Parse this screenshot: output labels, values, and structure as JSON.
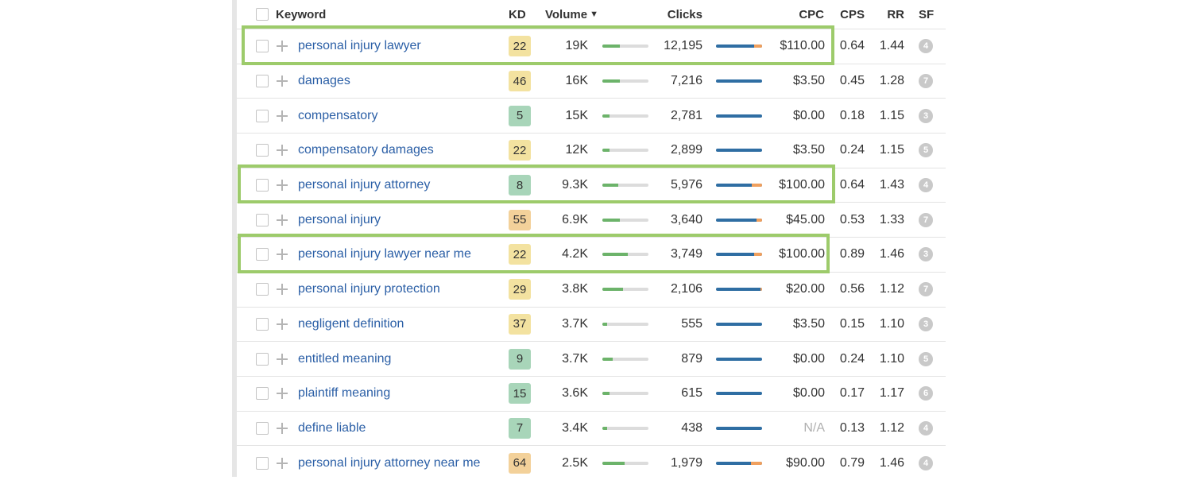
{
  "header": {
    "keyword": "Keyword",
    "kd": "KD",
    "volume": "Volume",
    "sort_indicator": "▼",
    "clicks": "Clicks",
    "cpc": "CPC",
    "cps": "CPS",
    "rr": "RR",
    "sf": "SF"
  },
  "colors": {
    "kd_easy": "#a8d5b9",
    "kd_medium": "#f3e2a0",
    "kd_hard": "#f3d19a",
    "highlight": "#9dcb6b",
    "link": "#2b5fa6"
  },
  "rows": [
    {
      "keyword": "personal injury lawyer",
      "kd": "22",
      "kd_level": "medium",
      "volume": "19K",
      "volume_level": 0.38,
      "clicks": "12,195",
      "paid_share": 0.18,
      "cpc": "$110.00",
      "cps": "0.64",
      "rr": "1.44",
      "sf": "4",
      "highlighted": true
    },
    {
      "keyword": "damages",
      "kd": "46",
      "kd_level": "medium",
      "volume": "16K",
      "volume_level": 0.38,
      "clicks": "7,216",
      "paid_share": 0,
      "cpc": "$3.50",
      "cps": "0.45",
      "rr": "1.28",
      "sf": "7",
      "highlighted": false
    },
    {
      "keyword": "compensatory",
      "kd": "5",
      "kd_level": "easy",
      "volume": "15K",
      "volume_level": 0.15,
      "clicks": "2,781",
      "paid_share": 0,
      "cpc": "$0.00",
      "cps": "0.18",
      "rr": "1.15",
      "sf": "3",
      "highlighted": false
    },
    {
      "keyword": "compensatory damages",
      "kd": "22",
      "kd_level": "medium",
      "volume": "12K",
      "volume_level": 0.15,
      "clicks": "2,899",
      "paid_share": 0,
      "cpc": "$3.50",
      "cps": "0.24",
      "rr": "1.15",
      "sf": "5",
      "highlighted": false
    },
    {
      "keyword": "personal injury attorney",
      "kd": "8",
      "kd_level": "easy",
      "volume": "9.3K",
      "volume_level": 0.35,
      "clicks": "5,976",
      "paid_share": 0.22,
      "cpc": "$100.00",
      "cps": "0.64",
      "rr": "1.43",
      "sf": "4",
      "highlighted": true
    },
    {
      "keyword": "personal injury",
      "kd": "55",
      "kd_level": "hard",
      "volume": "6.9K",
      "volume_level": 0.38,
      "clicks": "3,640",
      "paid_share": 0.12,
      "cpc": "$45.00",
      "cps": "0.53",
      "rr": "1.33",
      "sf": "7",
      "highlighted": false
    },
    {
      "keyword": "personal injury lawyer near me",
      "kd": "22",
      "kd_level": "medium",
      "volume": "4.2K",
      "volume_level": 0.55,
      "clicks": "3,749",
      "paid_share": 0.18,
      "cpc": "$100.00",
      "cps": "0.89",
      "rr": "1.46",
      "sf": "3",
      "highlighted": true
    },
    {
      "keyword": "personal injury protection",
      "kd": "29",
      "kd_level": "medium",
      "volume": "3.8K",
      "volume_level": 0.45,
      "clicks": "2,106",
      "paid_share": 0.04,
      "cpc": "$20.00",
      "cps": "0.56",
      "rr": "1.12",
      "sf": "7",
      "highlighted": false
    },
    {
      "keyword": "negligent definition",
      "kd": "37",
      "kd_level": "medium",
      "volume": "3.7K",
      "volume_level": 0.1,
      "clicks": "555",
      "paid_share": 0,
      "cpc": "$3.50",
      "cps": "0.15",
      "rr": "1.10",
      "sf": "3",
      "highlighted": false
    },
    {
      "keyword": "entitled meaning",
      "kd": "9",
      "kd_level": "easy",
      "volume": "3.7K",
      "volume_level": 0.22,
      "clicks": "879",
      "paid_share": 0,
      "cpc": "$0.00",
      "cps": "0.24",
      "rr": "1.10",
      "sf": "5",
      "highlighted": false
    },
    {
      "keyword": "plaintiff meaning",
      "kd": "15",
      "kd_level": "easy",
      "volume": "3.6K",
      "volume_level": 0.15,
      "clicks": "615",
      "paid_share": 0,
      "cpc": "$0.00",
      "cps": "0.17",
      "rr": "1.17",
      "sf": "6",
      "highlighted": false
    },
    {
      "keyword": "define liable",
      "kd": "7",
      "kd_level": "easy",
      "volume": "3.4K",
      "volume_level": 0.1,
      "clicks": "438",
      "paid_share": 0,
      "cpc": "N/A",
      "cps": "0.13",
      "rr": "1.12",
      "sf": "4",
      "highlighted": false
    },
    {
      "keyword": "personal injury attorney near me",
      "kd": "64",
      "kd_level": "hard",
      "volume": "2.5K",
      "volume_level": 0.48,
      "clicks": "1,979",
      "paid_share": 0.25,
      "cpc": "$90.00",
      "cps": "0.79",
      "rr": "1.46",
      "sf": "4",
      "highlighted": false
    }
  ]
}
